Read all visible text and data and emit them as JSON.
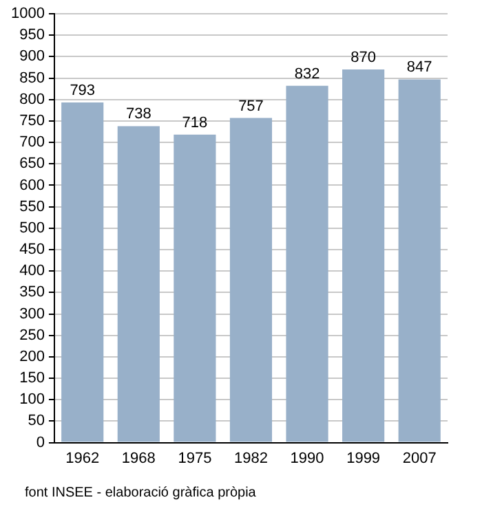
{
  "chart_data": {
    "type": "bar",
    "categories": [
      "1962",
      "1968",
      "1975",
      "1982",
      "1990",
      "1999",
      "2007"
    ],
    "values": [
      793,
      738,
      718,
      757,
      832,
      870,
      847
    ],
    "color": "#98b0c9",
    "ylim": [
      0,
      1000
    ],
    "yticks": [
      0,
      50,
      100,
      150,
      200,
      250,
      300,
      350,
      400,
      450,
      500,
      550,
      600,
      650,
      700,
      750,
      800,
      850,
      900,
      950,
      1000
    ],
    "grid": "y",
    "data_labels": true,
    "annotations": [
      "font INSEE - elaboració gràfica pròpia"
    ]
  }
}
